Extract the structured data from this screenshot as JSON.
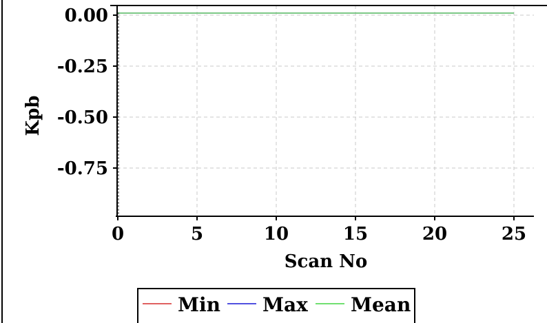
{
  "chart_data": {
    "type": "line",
    "title": "",
    "xlabel": "Scan No",
    "ylabel": "Kpb",
    "xlim": [
      0,
      26
    ],
    "ylim": [
      -1.0,
      0.02
    ],
    "x_ticks": [
      0,
      5,
      10,
      15,
      20,
      25
    ],
    "x_tick_labels": [
      "0",
      "5",
      "10",
      "15",
      "20",
      "25"
    ],
    "y_ticks": [
      0.0,
      -0.25,
      -0.5,
      -0.75
    ],
    "y_tick_labels": [
      "0.00",
      "-0.25",
      "-0.50",
      "-0.75"
    ],
    "grid": true,
    "legend_position": "bottom-center",
    "series": [
      {
        "name": "Min",
        "color": "#e06060",
        "x": [
          0,
          25
        ],
        "y": [
          0.01,
          0.01
        ]
      },
      {
        "name": "Max",
        "color": "#5050e0",
        "x": [
          0,
          25
        ],
        "y": [
          0.01,
          0.01
        ]
      },
      {
        "name": "Mean",
        "color": "#70e070",
        "x": [
          0,
          25
        ],
        "y": [
          0.01,
          0.01
        ]
      }
    ]
  }
}
